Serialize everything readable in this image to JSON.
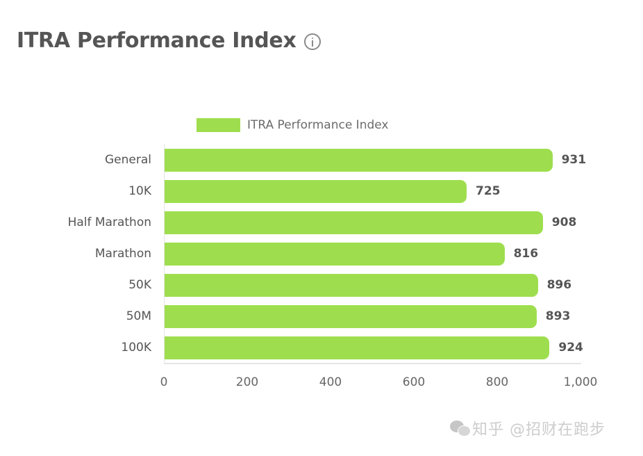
{
  "header": {
    "title": "ITRA Performance Index",
    "info_icon": "info-circle-icon"
  },
  "legend": {
    "label": "ITRA Performance Index",
    "color": "#9ede4e"
  },
  "chart": {
    "bar_color": "#9ede4e",
    "categories": [
      "General",
      "10K",
      "Half Marathon",
      "Marathon",
      "50K",
      "50M",
      "100K"
    ],
    "values": [
      "931",
      "725",
      "908",
      "816",
      "896",
      "893",
      "924"
    ],
    "x_ticks": [
      "0",
      "200",
      "400",
      "600",
      "800",
      "1,000"
    ]
  },
  "watermark": {
    "icon": "wechat-icon",
    "text": "知乎 @招财在跑步"
  },
  "chart_data": {
    "type": "bar",
    "orientation": "horizontal",
    "title": "ITRA Performance Index",
    "categories": [
      "General",
      "10K",
      "Half Marathon",
      "Marathon",
      "50K",
      "50M",
      "100K"
    ],
    "series": [
      {
        "name": "ITRA Performance Index",
        "color": "#9ede4e",
        "values": [
          931,
          725,
          908,
          816,
          896,
          893,
          924
        ]
      }
    ],
    "xlabel": "",
    "ylabel": "",
    "xlim": [
      0,
      1000
    ],
    "x_ticks": [
      0,
      200,
      400,
      600,
      800,
      1000
    ],
    "data_labels": true,
    "grid": false,
    "legend_position": "top"
  }
}
